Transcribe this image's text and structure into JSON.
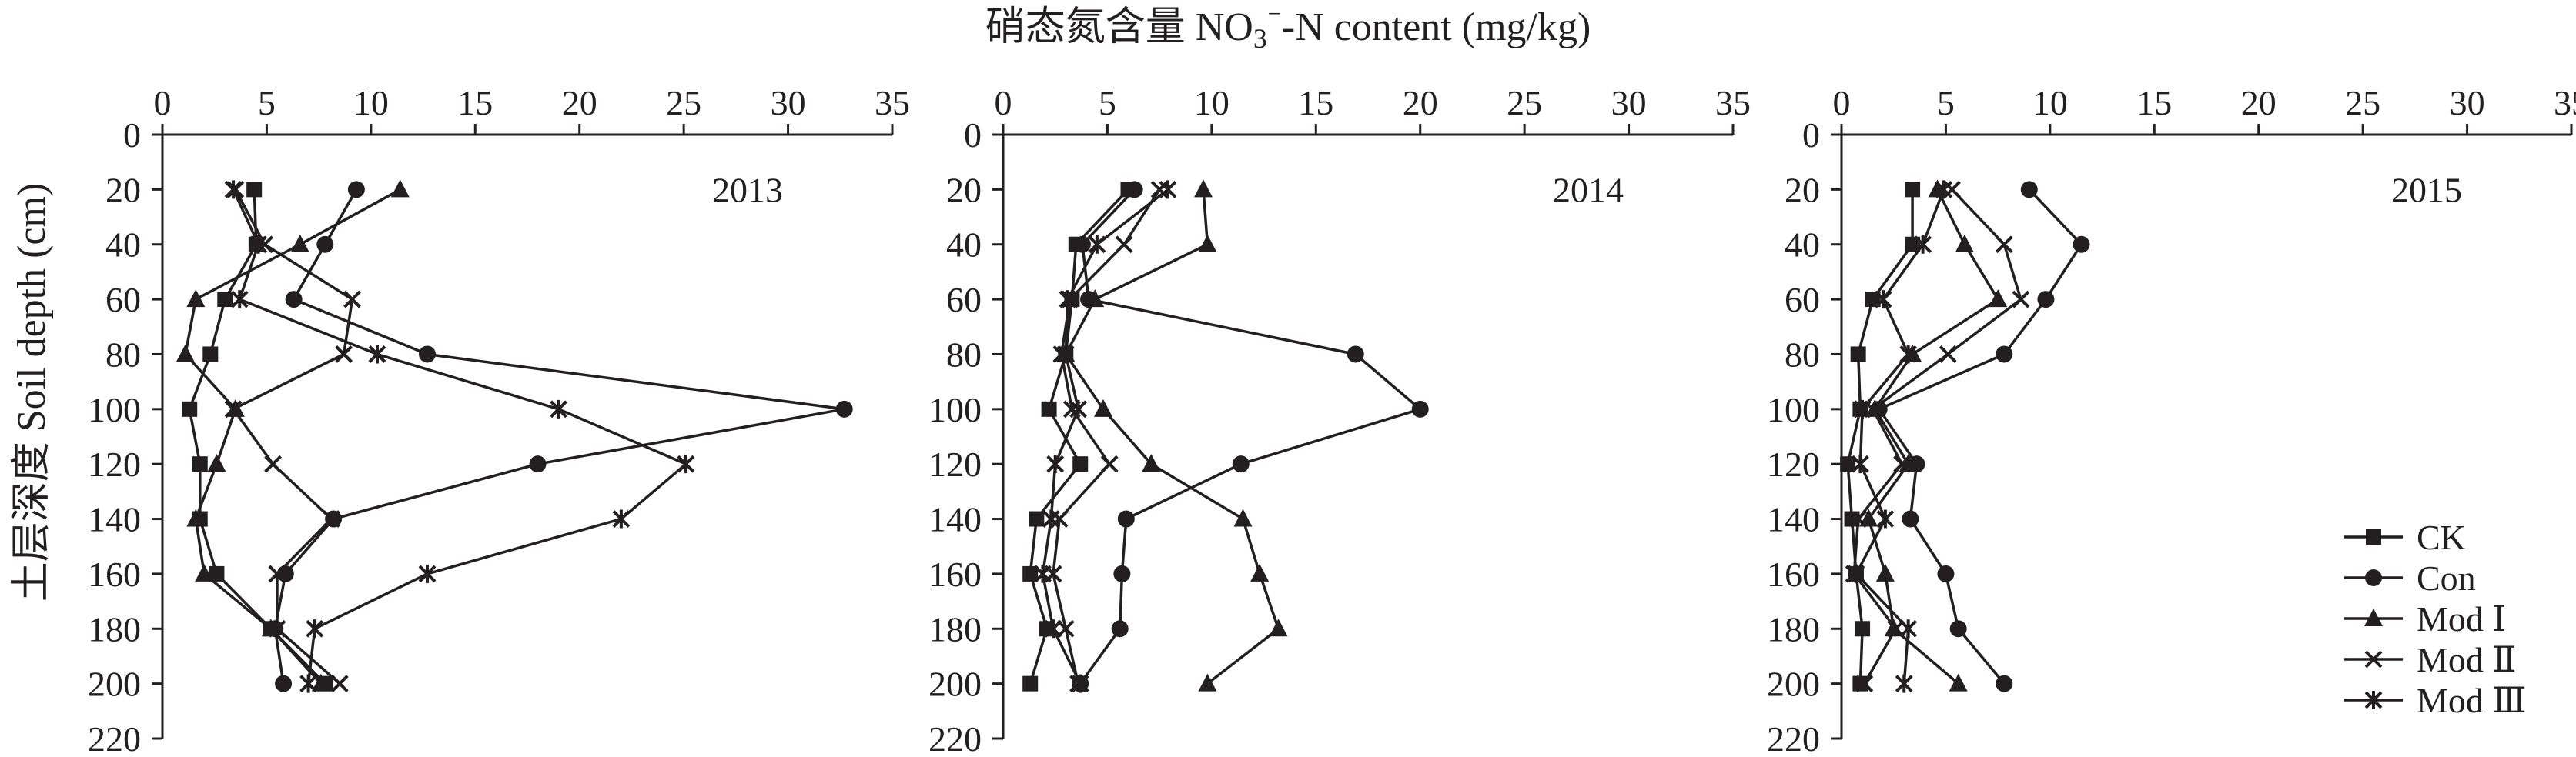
{
  "chart_data": {
    "type": "line",
    "title": "硝态氮含量 NO3⁻-N content (mg/kg)",
    "ylabel": "土层深度 Soil depth (cm)",
    "xlim": [
      0,
      35
    ],
    "ylim": [
      0,
      220
    ],
    "y_inverted": true,
    "x_ticks": [
      "0",
      "5",
      "10",
      "15",
      "20",
      "25",
      "30",
      "35"
    ],
    "y_ticks": [
      "0",
      "20",
      "40",
      "60",
      "80",
      "100",
      "120",
      "140",
      "160",
      "180",
      "200",
      "220"
    ],
    "legend_position": "bottom-right of third panel",
    "series_styles": {
      "CK": "square",
      "Con": "circle",
      "Mod Ⅰ": "triangle",
      "Mod Ⅱ": "x",
      "Mod Ⅲ": "asterisk"
    },
    "panels": [
      {
        "year": "2013",
        "series": [
          {
            "name": "CK",
            "points": [
              [
                4.4,
                20
              ],
              [
                4.5,
                40
              ],
              [
                3.0,
                60
              ],
              [
                2.3,
                80
              ],
              [
                1.3,
                100
              ],
              [
                1.8,
                120
              ],
              [
                1.8,
                140
              ],
              [
                2.6,
                160
              ],
              [
                5.2,
                180
              ],
              [
                7.8,
                200
              ]
            ]
          },
          {
            "name": "Con",
            "points": [
              [
                9.3,
                20
              ],
              [
                7.8,
                40
              ],
              [
                6.3,
                60
              ],
              [
                12.7,
                80
              ],
              [
                32.7,
                100
              ],
              [
                18.0,
                120
              ],
              [
                8.2,
                140
              ],
              [
                5.9,
                160
              ],
              [
                5.4,
                180
              ],
              [
                5.8,
                200
              ]
            ]
          },
          {
            "name": "Mod Ⅰ",
            "points": [
              [
                11.4,
                20
              ],
              [
                6.6,
                40
              ],
              [
                1.6,
                60
              ],
              [
                1.1,
                80
              ],
              [
                3.5,
                100
              ],
              [
                2.6,
                120
              ],
              [
                1.6,
                140
              ],
              [
                2.0,
                160
              ],
              [
                5.2,
                180
              ],
              [
                7.6,
                200
              ]
            ]
          },
          {
            "name": "Mod Ⅱ",
            "points": [
              [
                3.5,
                20
              ],
              [
                4.9,
                40
              ],
              [
                9.1,
                60
              ],
              [
                8.7,
                80
              ],
              [
                3.4,
                100
              ],
              [
                5.3,
                120
              ],
              [
                8.1,
                140
              ],
              [
                5.5,
                160
              ],
              [
                5.5,
                180
              ],
              [
                8.5,
                200
              ]
            ]
          },
          {
            "name": "Mod Ⅲ",
            "points": [
              [
                3.4,
                20
              ],
              [
                4.6,
                40
              ],
              [
                3.7,
                60
              ],
              [
                10.3,
                80
              ],
              [
                19.0,
                100
              ],
              [
                25.1,
                120
              ],
              [
                22.0,
                140
              ],
              [
                12.7,
                160
              ],
              [
                7.3,
                180
              ],
              [
                7.0,
                200
              ]
            ]
          }
        ]
      },
      {
        "year": "2014",
        "series": [
          {
            "name": "CK",
            "points": [
              [
                6.0,
                20
              ],
              [
                3.5,
                40
              ],
              [
                3.3,
                60
              ],
              [
                3.0,
                80
              ],
              [
                2.2,
                100
              ],
              [
                3.7,
                120
              ],
              [
                1.6,
                140
              ],
              [
                1.3,
                160
              ],
              [
                2.1,
                180
              ],
              [
                1.3,
                200
              ]
            ]
          },
          {
            "name": "Con",
            "points": [
              [
                6.3,
                20
              ],
              [
                3.8,
                40
              ],
              [
                4.1,
                60
              ],
              [
                16.9,
                80
              ],
              [
                20.0,
                100
              ],
              [
                11.4,
                120
              ],
              [
                5.9,
                140
              ],
              [
                5.7,
                160
              ],
              [
                5.6,
                180
              ],
              [
                3.7,
                200
              ]
            ]
          },
          {
            "name": "Mod Ⅰ",
            "points": [
              [
                9.6,
                20
              ],
              [
                9.8,
                40
              ],
              [
                4.4,
                60
              ],
              [
                3.0,
                80
              ],
              [
                4.8,
                100
              ],
              [
                7.1,
                120
              ],
              [
                11.5,
                140
              ],
              [
                12.3,
                160
              ],
              [
                13.2,
                180
              ],
              [
                9.8,
                200
              ]
            ]
          },
          {
            "name": "Mod Ⅱ",
            "points": [
              [
                7.5,
                20
              ],
              [
                5.8,
                40
              ],
              [
                3.2,
                60
              ],
              [
                2.8,
                80
              ],
              [
                3.3,
                100
              ],
              [
                5.1,
                120
              ],
              [
                2.7,
                140
              ],
              [
                2.4,
                160
              ],
              [
                3.0,
                180
              ],
              [
                3.6,
                200
              ]
            ]
          },
          {
            "name": "Mod Ⅲ",
            "points": [
              [
                7.9,
                20
              ],
              [
                4.5,
                40
              ],
              [
                3.1,
                60
              ],
              [
                3.0,
                80
              ],
              [
                3.6,
                100
              ],
              [
                2.5,
                120
              ],
              [
                2.3,
                140
              ],
              [
                1.9,
                160
              ],
              [
                2.4,
                180
              ],
              [
                3.7,
                200
              ]
            ]
          }
        ]
      },
      {
        "year": "2015",
        "series": [
          {
            "name": "CK",
            "points": [
              [
                3.4,
                20
              ],
              [
                3.4,
                40
              ],
              [
                1.5,
                60
              ],
              [
                0.8,
                80
              ],
              [
                0.9,
                100
              ],
              [
                0.3,
                120
              ],
              [
                0.5,
                140
              ],
              [
                0.7,
                160
              ],
              [
                1.0,
                180
              ],
              [
                0.9,
                200
              ]
            ]
          },
          {
            "name": "Con",
            "points": [
              [
                9.0,
                20
              ],
              [
                11.5,
                40
              ],
              [
                9.8,
                60
              ],
              [
                7.8,
                80
              ],
              [
                1.8,
                100
              ],
              [
                3.6,
                120
              ],
              [
                3.3,
                140
              ],
              [
                5.0,
                160
              ],
              [
                5.6,
                180
              ],
              [
                7.8,
                200
              ]
            ]
          },
          {
            "name": "Mod Ⅰ",
            "points": [
              [
                4.6,
                20
              ],
              [
                5.9,
                40
              ],
              [
                7.5,
                60
              ],
              [
                3.4,
                80
              ],
              [
                1.6,
                100
              ],
              [
                3.2,
                120
              ],
              [
                1.3,
                140
              ],
              [
                2.1,
                160
              ],
              [
                2.5,
                180
              ],
              [
                5.6,
                200
              ]
            ]
          },
          {
            "name": "Mod Ⅱ",
            "points": [
              [
                5.3,
                20
              ],
              [
                7.8,
                40
              ],
              [
                8.6,
                60
              ],
              [
                5.1,
                80
              ],
              [
                1.5,
                100
              ],
              [
                2.9,
                120
              ],
              [
                0.8,
                140
              ],
              [
                0.6,
                160
              ],
              [
                2.6,
                180
              ],
              [
                1.1,
                200
              ]
            ]
          },
          {
            "name": "Mod Ⅲ",
            "points": [
              [
                4.9,
                20
              ],
              [
                3.9,
                40
              ],
              [
                2.0,
                60
              ],
              [
                3.2,
                80
              ],
              [
                1.0,
                100
              ],
              [
                0.9,
                120
              ],
              [
                2.1,
                140
              ],
              [
                0.7,
                160
              ],
              [
                3.2,
                180
              ],
              [
                3.0,
                200
              ]
            ]
          }
        ]
      }
    ]
  }
}
